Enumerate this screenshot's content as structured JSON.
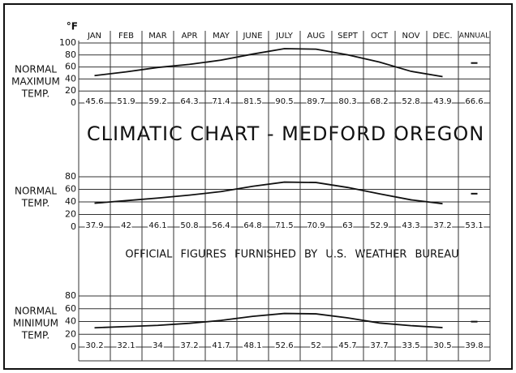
{
  "title": "CLIMATIC CHART - MEDFORD OREGON",
  "note": "OFFICIAL FIGURES FURNISHED BY U.S. WEATHER BUREAU",
  "unit": "°F",
  "chart_data": [
    {
      "type": "line",
      "y_label": [
        "NORMAL",
        "MAXIMUM",
        "TEMP."
      ],
      "categories": [
        "JAN",
        "FEB",
        "MAR",
        "APR",
        "MAY",
        "JUNE",
        "JULY",
        "AUG",
        "SEPT",
        "OCT",
        "NOV",
        "DEC."
      ],
      "annual_label": "ANNUAL",
      "values": [
        45.6,
        51.9,
        59.2,
        64.3,
        71.4,
        81.5,
        90.5,
        89.7,
        80.3,
        68.2,
        52.8,
        43.9
      ],
      "annual": 66.6,
      "color": "#111111",
      "ylim": [
        0,
        100
      ],
      "yticks": [
        0,
        20,
        40,
        60,
        80,
        100
      ],
      "grid": true
    },
    {
      "type": "line",
      "y_label": [
        "NORMAL",
        "TEMP."
      ],
      "values": [
        37.9,
        42.0,
        46.1,
        50.8,
        56.4,
        64.8,
        71.5,
        70.9,
        63.0,
        52.9,
        43.3,
        37.2
      ],
      "annual": 53.1,
      "color": "#111111",
      "ylim": [
        0,
        80
      ],
      "yticks": [
        0,
        20,
        40,
        60,
        80
      ],
      "grid": true
    },
    {
      "type": "line",
      "y_label": [
        "NORMAL",
        "MINIMUM",
        "TEMP."
      ],
      "values": [
        30.2,
        32.1,
        34.0,
        37.2,
        41.7,
        48.1,
        52.6,
        52.0,
        45.7,
        37.7,
        33.5,
        30.5
      ],
      "annual": 39.8,
      "color": "#111111",
      "ylim": [
        0,
        80
      ],
      "yticks": [
        0,
        20,
        40,
        60,
        80
      ],
      "grid": true
    }
  ]
}
